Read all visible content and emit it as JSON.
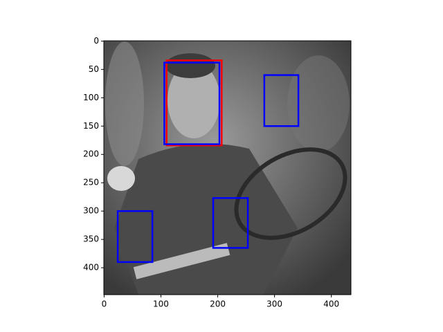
{
  "chart_data": {
    "type": "image-boxes",
    "xlim": [
      -0.5,
      434.5
    ],
    "ylim": [
      447.5,
      -0.5
    ],
    "xticks": [
      0,
      100,
      200,
      300,
      400
    ],
    "yticks": [
      0,
      50,
      100,
      150,
      200,
      250,
      300,
      350,
      400
    ],
    "series": [
      {
        "color": "#ff0000",
        "boxes": [
          [
            110,
            34,
            207,
            184
          ]
        ]
      },
      {
        "color": "#0000ff",
        "boxes": [
          [
            106,
            38,
            203,
            182
          ],
          [
            282,
            60,
            342,
            150
          ],
          [
            24,
            300,
            85,
            390
          ],
          [
            192,
            277,
            253,
            365
          ]
        ]
      }
    ]
  }
}
